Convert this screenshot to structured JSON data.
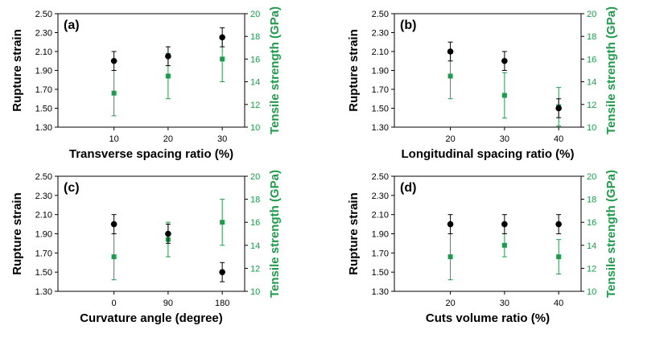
{
  "colors": {
    "left": "#000000",
    "right": "#1a9e4a"
  },
  "chart_data": [
    {
      "type": "scatter",
      "panel_label": "(a)",
      "xlabel": "Transverse spacing ratio (%)",
      "ylabel_left": "Rupture strain",
      "ylabel_right": "Tensile strength (GPa)",
      "categories": [
        "10",
        "20",
        "30"
      ],
      "y_left_ticks": [
        "1.30",
        "1.50",
        "1.70",
        "1.90",
        "2.10",
        "2.30",
        "2.50"
      ],
      "y_right_ticks": [
        "10",
        "12",
        "14",
        "16",
        "18",
        "20"
      ],
      "ylim_left": [
        1.3,
        2.5
      ],
      "ylim_right": [
        10,
        20
      ],
      "series": [
        {
          "name": "Rupture strain",
          "axis": "left",
          "marker": "circle",
          "values": [
            2.0,
            2.05,
            2.25
          ],
          "errors": [
            0.1,
            0.1,
            0.1
          ]
        },
        {
          "name": "Tensile strength",
          "axis": "right",
          "marker": "square",
          "values": [
            13.0,
            14.5,
            16.0
          ],
          "errors": [
            2.0,
            2.0,
            2.0
          ]
        }
      ]
    },
    {
      "type": "scatter",
      "panel_label": "(b)",
      "xlabel": "Longitudinal spacing ratio (%)",
      "ylabel_left": "Rupture strain",
      "ylabel_right": "Tensile strength (GPa)",
      "categories": [
        "20",
        "30",
        "40"
      ],
      "y_left_ticks": [
        "1.30",
        "1.50",
        "1.70",
        "1.90",
        "2.10",
        "2.30",
        "2.50"
      ],
      "y_right_ticks": [
        "10",
        "12",
        "14",
        "16",
        "18",
        "20"
      ],
      "ylim_left": [
        1.3,
        2.5
      ],
      "ylim_right": [
        10,
        20
      ],
      "series": [
        {
          "name": "Rupture strain",
          "axis": "left",
          "marker": "circle",
          "values": [
            2.1,
            2.0,
            1.5
          ],
          "errors": [
            0.1,
            0.1,
            0.1
          ]
        },
        {
          "name": "Tensile strength",
          "axis": "right",
          "marker": "square",
          "values": [
            14.5,
            12.8,
            11.8
          ],
          "errors": [
            2.0,
            2.0,
            1.7
          ]
        }
      ]
    },
    {
      "type": "scatter",
      "panel_label": "(c)",
      "xlabel": "Curvature angle (degree)",
      "ylabel_left": "Rupture strain",
      "ylabel_right": "Tensile strength (GPa)",
      "categories": [
        "0",
        "90",
        "180"
      ],
      "y_left_ticks": [
        "1.30",
        "1.50",
        "1.70",
        "1.90",
        "2.10",
        "2.30",
        "2.50"
      ],
      "y_right_ticks": [
        "10",
        "12",
        "14",
        "16",
        "18",
        "20"
      ],
      "ylim_left": [
        1.3,
        2.5
      ],
      "ylim_right": [
        10,
        20
      ],
      "series": [
        {
          "name": "Rupture strain",
          "axis": "left",
          "marker": "circle",
          "values": [
            2.0,
            1.9,
            1.5
          ],
          "errors": [
            0.1,
            0.1,
            0.1
          ]
        },
        {
          "name": "Tensile strength",
          "axis": "right",
          "marker": "square",
          "values": [
            13.0,
            14.5,
            16.0
          ],
          "errors": [
            2.0,
            1.5,
            2.0
          ]
        }
      ]
    },
    {
      "type": "scatter",
      "panel_label": "(d)",
      "xlabel": "Cuts volume ratio (%)",
      "ylabel_left": "Rupture strain",
      "ylabel_right": "Tensile strength (GPa)",
      "categories": [
        "20",
        "30",
        "40"
      ],
      "y_left_ticks": [
        "1.30",
        "1.50",
        "1.70",
        "1.90",
        "2.10",
        "2.30",
        "2.50"
      ],
      "y_right_ticks": [
        "10",
        "12",
        "14",
        "16",
        "18",
        "20"
      ],
      "ylim_left": [
        1.3,
        2.5
      ],
      "ylim_right": [
        10,
        20
      ],
      "series": [
        {
          "name": "Rupture strain",
          "axis": "left",
          "marker": "circle",
          "values": [
            2.0,
            2.0,
            2.0
          ],
          "errors": [
            0.1,
            0.1,
            0.1
          ]
        },
        {
          "name": "Tensile strength",
          "axis": "right",
          "marker": "square",
          "values": [
            13.0,
            14.0,
            13.0
          ],
          "errors": [
            2.0,
            1.0,
            1.5
          ]
        }
      ]
    }
  ]
}
